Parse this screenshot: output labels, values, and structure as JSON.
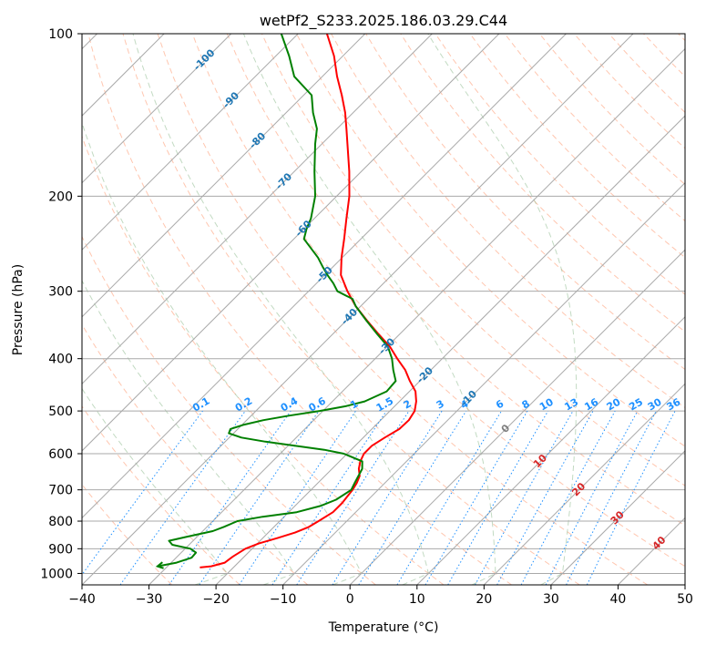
{
  "chart_data": {
    "type": "line",
    "subtype": "skew-T log-P diagram",
    "title": "wetPf2_S233.2025.186.03.29.C44",
    "xlabel": "Temperature (°C)",
    "ylabel": "Pressure (hPa)",
    "xlim": [
      -40,
      50
    ],
    "ylim": [
      1050,
      100
    ],
    "y_scale": "log",
    "grid": true,
    "x_ticks": [
      -40,
      -30,
      -20,
      -10,
      0,
      10,
      20,
      30,
      40,
      50
    ],
    "x_tick_labels": [
      "−40",
      "−30",
      "−20",
      "−10",
      "0",
      "10",
      "20",
      "30",
      "40",
      "50"
    ],
    "y_ticks": [
      100,
      200,
      300,
      400,
      500,
      600,
      700,
      800,
      900,
      1000
    ],
    "y_tick_labels": [
      "100",
      "200",
      "300",
      "400",
      "500",
      "600",
      "700",
      "800",
      "900",
      "1000"
    ],
    "series": [
      {
        "role": "temperature",
        "color": "#ff0000",
        "p": [
          975,
          970,
          955,
          930,
          900,
          880,
          860,
          840,
          820,
          800,
          770,
          740,
          700,
          680,
          660,
          640,
          620,
          600,
          580,
          560,
          540,
          520,
          500,
          480,
          460,
          440,
          420,
          400,
          380,
          360,
          340,
          320,
          300,
          280,
          260,
          240,
          220,
          200,
          180,
          160,
          150,
          140,
          130,
          120,
          110,
          100
        ],
        "t": [
          -25,
          -23.5,
          -22,
          -21.7,
          -21,
          -19.8,
          -17.8,
          -16,
          -14.8,
          -14.2,
          -13.4,
          -13.4,
          -13.8,
          -14.2,
          -14.8,
          -16,
          -16.9,
          -17.5,
          -17.5,
          -16.8,
          -15.9,
          -15.8,
          -16.3,
          -17.5,
          -19.1,
          -21.5,
          -23.8,
          -26.7,
          -29.6,
          -33.2,
          -36.9,
          -40.7,
          -44.2,
          -47.6,
          -50.1,
          -52.5,
          -55.2,
          -58.1,
          -61.8,
          -66.2,
          -68.6,
          -71.2,
          -74.3,
          -77.8,
          -81.3,
          -85.7
        ]
      },
      {
        "role": "dewpoint",
        "color": "#008000",
        "p": [
          970,
          955,
          935,
          915,
          900,
          885,
          870,
          855,
          835,
          820,
          800,
          785,
          770,
          750,
          730,
          700,
          680,
          660,
          640,
          620,
          600,
          590,
          580,
          570,
          560,
          550,
          540,
          530,
          520,
          510,
          500,
          490,
          480,
          460,
          440,
          420,
          400,
          380,
          360,
          340,
          320,
          310,
          300,
          290,
          280,
          270,
          260,
          250,
          240,
          230,
          220,
          200,
          180,
          160,
          150,
          140,
          130,
          120,
          110,
          100
        ],
        "t": [
          -31.5,
          -29.2,
          -27.7,
          -27.8,
          -29.2,
          -32.5,
          -33.6,
          -31.5,
          -28.5,
          -27.5,
          -26.3,
          -23.2,
          -18.8,
          -16.2,
          -14.8,
          -14,
          -14.5,
          -15,
          -15.5,
          -16.6,
          -20.5,
          -24,
          -29,
          -34,
          -38.2,
          -40.7,
          -41.1,
          -39.7,
          -37.5,
          -34.3,
          -30.5,
          -27.3,
          -25.2,
          -23.4,
          -23.6,
          -25.6,
          -27.5,
          -29.9,
          -33.4,
          -37,
          -40.7,
          -42.3,
          -45.7,
          -47.5,
          -49.6,
          -51.6,
          -53.6,
          -56,
          -58.5,
          -59.6,
          -60.5,
          -63.2,
          -67,
          -71,
          -73,
          -76,
          -78.8,
          -84.2,
          -88,
          -92.5
        ]
      }
    ],
    "dry_adiabats": {
      "color": "#ffa07a",
      "style": "dashed",
      "theta_C": [
        -30,
        -20,
        -10,
        0,
        10,
        20,
        30,
        40,
        50,
        60,
        70,
        80,
        90,
        100,
        110,
        120,
        130,
        140,
        150,
        160,
        170,
        180,
        190,
        200,
        210
      ]
    },
    "moist_adiabats": {
      "color": "#8fbc8f",
      "style": "dashed",
      "theta_w_C": [
        -20,
        -10,
        0,
        10,
        20,
        30
      ]
    },
    "mixing_ratio_lines": {
      "color": "#1e90ff",
      "style": "dotted",
      "values_g_kg": [
        0.1,
        0.2,
        0.4,
        0.6,
        1,
        1.5,
        2,
        3,
        4,
        6,
        8,
        10,
        13,
        16,
        20,
        25,
        30,
        36
      ],
      "labels": [
        "0.1",
        "0.2",
        "0.4",
        "0.6",
        "1",
        "1.5",
        "2",
        "3",
        "4",
        "6",
        "8",
        "10",
        "13",
        "16",
        "20",
        "25",
        "30",
        "36"
      ],
      "label_pressure_hPa": 500
    },
    "isotherm_labels": {
      "color": "#1f77b4",
      "values": [
        -100,
        -90,
        -80,
        -70,
        -60,
        -50,
        -40,
        -30,
        -20,
        -10
      ],
      "labels": [
        "-100",
        "-90",
        "-80",
        "-70",
        "-60",
        "-50",
        "-40",
        "-30",
        "-20",
        "-10"
      ],
      "p": [
        112,
        133,
        158,
        188,
        230,
        280,
        335,
        380,
        430,
        475
      ]
    },
    "upper_isotherm_labels": {
      "color": "#d62728",
      "values": [
        10,
        20,
        30,
        40
      ],
      "labels": [
        "10",
        "20",
        "30",
        "40"
      ],
      "p": [
        620,
        700,
        790,
        880
      ]
    },
    "zero_label": {
      "text": "0",
      "color": "#7f7f7f",
      "p": 540
    }
  }
}
